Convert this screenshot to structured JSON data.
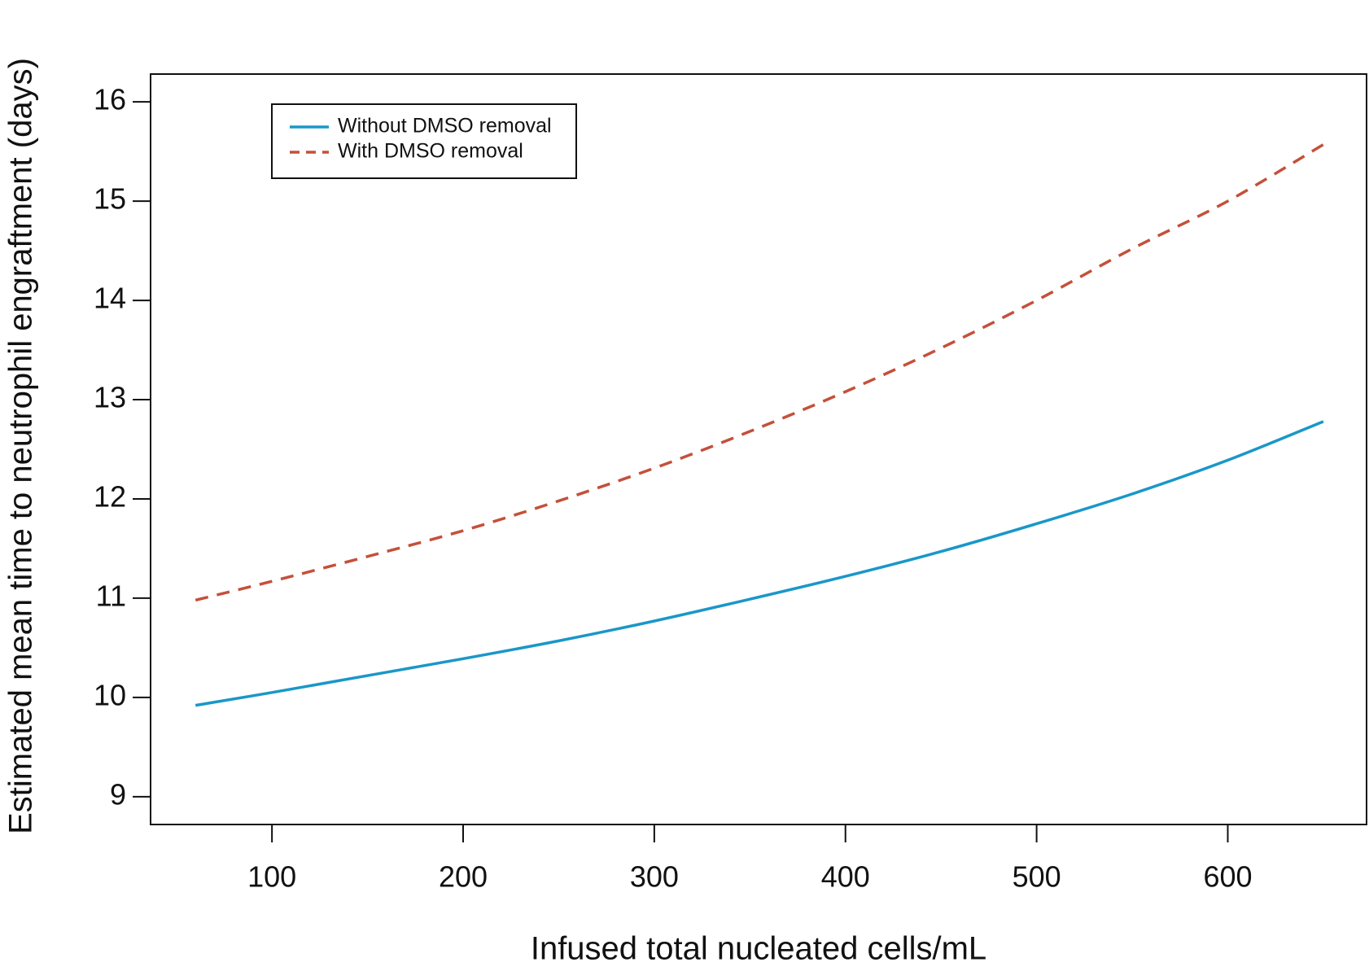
{
  "chart_data": {
    "type": "line",
    "xlabel": "Infused total nucleated cells/mL",
    "ylabel": "Estimated mean time to neutrophil engraftment (days)",
    "x": [
      60,
      100,
      150,
      200,
      250,
      300,
      350,
      400,
      450,
      500,
      550,
      600,
      650
    ],
    "series": [
      {
        "name": "Without DMSO removal",
        "color": "#1a97c8",
        "style": "solid",
        "values": [
          9.92,
          10.05,
          10.22,
          10.39,
          10.57,
          10.77,
          10.99,
          11.22,
          11.47,
          11.75,
          12.05,
          12.39,
          12.78
        ]
      },
      {
        "name": "With DMSO removal",
        "color": "#c4503a",
        "style": "dashed",
        "values": [
          10.98,
          11.17,
          11.42,
          11.68,
          11.98,
          12.31,
          12.68,
          13.08,
          13.52,
          14.0,
          14.52,
          15.0,
          15.57
        ]
      }
    ],
    "xlim": [
      36.5,
      672.6
    ],
    "xticks": [
      100,
      200,
      300,
      400,
      500,
      600
    ],
    "ylim": [
      8.72,
      16.28
    ],
    "yticks": [
      9,
      10,
      11,
      12,
      13,
      14,
      15,
      16
    ],
    "legend": "top-left"
  }
}
